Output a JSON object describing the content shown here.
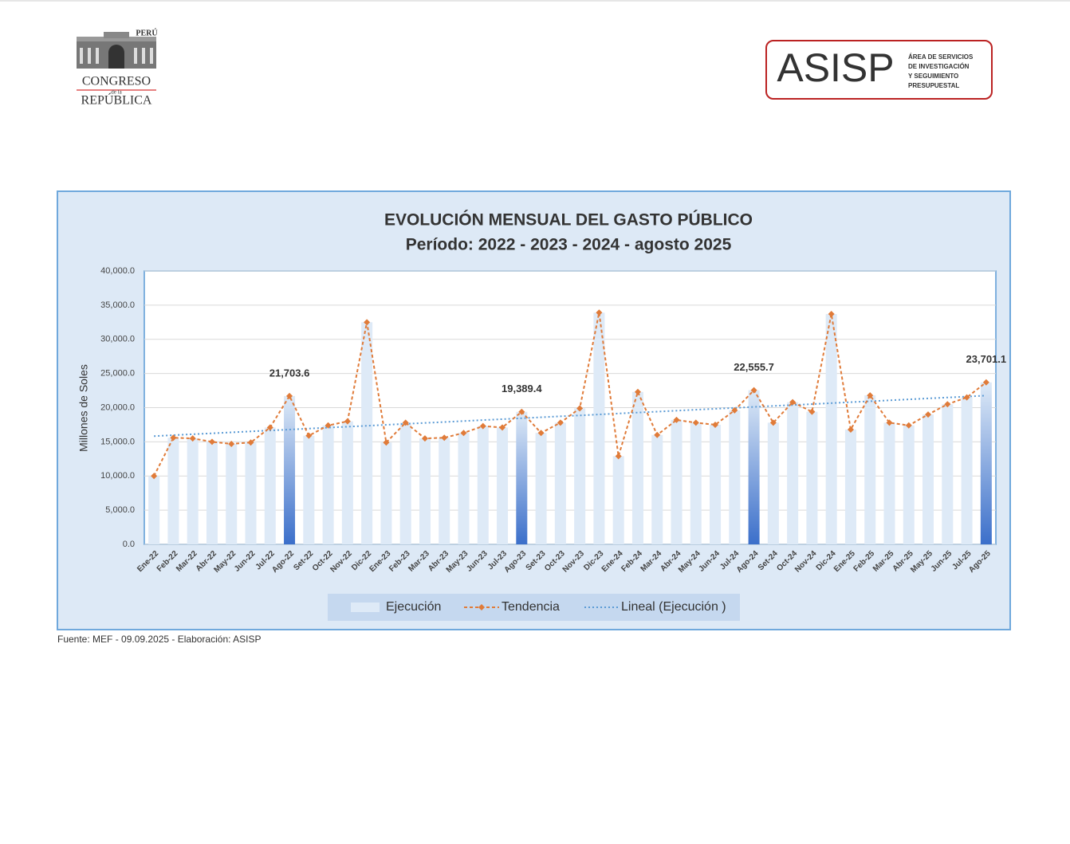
{
  "header": {
    "logo_country": "PERÚ",
    "logo_line1": "CONGRESO",
    "logo_line2": "de la",
    "logo_line3": "REPÚBLICA",
    "badge_title": "ASISP",
    "badge_lines": [
      "ÁREA DE SERVICIOS",
      "DE INVESTIGACIÓN",
      "Y SEGUIMIENTO",
      "PRESUPUESTAL"
    ]
  },
  "chart_data": {
    "type": "bar-line",
    "title": "EVOLUCIÓN MENSUAL DEL GASTO PÚBLICO",
    "subtitle": "Período: 2022 - 2023 - 2024 - agosto 2025",
    "y_label": "Millones de Soles",
    "categories": [
      "Ene-22",
      "Feb-22",
      "Mar-22",
      "Abr-22",
      "May-22",
      "Jun-22",
      "Jul-22",
      "Ago-22",
      "Set-22",
      "Oct-22",
      "Nov-22",
      "Dic-22",
      "Ene-23",
      "Feb-23",
      "Mar-23",
      "Abr-23",
      "May-23",
      "Jun-23",
      "Jul-23",
      "Ago-23",
      "Set-23",
      "Oct-23",
      "Nov-23",
      "Dic-23",
      "Ene-24",
      "Feb-24",
      "Mar-24",
      "Abr-24",
      "May-24",
      "Jun-24",
      "Jul-24",
      "Ago-24",
      "Set-24",
      "Oct-24",
      "Nov-24",
      "Dic-24",
      "Ene-25",
      "Feb-25",
      "Mar-25",
      "Abr-25",
      "May-25",
      "Jun-25",
      "Jul-25",
      "Ago-25"
    ],
    "values": [
      10000,
      15600,
      15500,
      15000,
      14700,
      14900,
      17100,
      21703.6,
      15900,
      17400,
      18000,
      32500,
      14900,
      17800,
      15500,
      15600,
      16300,
      17300,
      17100,
      19389.4,
      16300,
      17800,
      19900,
      33900,
      12900,
      22300,
      16000,
      18200,
      17800,
      17500,
      19600,
      22555.7,
      17800,
      20800,
      19400,
      33700,
      16800,
      21800,
      17800,
      17400,
      19000,
      20500,
      21500,
      23701.1
    ],
    "value_labels": [
      null,
      null,
      null,
      null,
      null,
      null,
      null,
      "21,703.6",
      null,
      null,
      null,
      null,
      null,
      null,
      null,
      null,
      null,
      null,
      null,
      "19,389.4",
      null,
      null,
      null,
      null,
      null,
      null,
      null,
      null,
      null,
      null,
      null,
      "22,555.7",
      null,
      null,
      null,
      null,
      null,
      null,
      null,
      null,
      null,
      null,
      null,
      "23,701.1"
    ],
    "legend": [
      "Ejecución",
      "Tendencia",
      "Lineal (Ejecución )"
    ],
    "bar_color": "#deeaf7",
    "highlight_color": "#3b6fca",
    "line_color": "#e07b39",
    "trend_color": "#5b9bd5",
    "ylim": [
      0,
      40000
    ],
    "yticks": [
      {
        "value": 0,
        "label": "0.0"
      },
      {
        "value": 5000,
        "label": "5,000.0"
      },
      {
        "value": 10000,
        "label": "10,000.0"
      },
      {
        "value": 15000,
        "label": "15,000.0"
      },
      {
        "value": 20000,
        "label": "20,000.0"
      },
      {
        "value": 25000,
        "label": "25,000.0"
      },
      {
        "value": 30000,
        "label": "30,000.0"
      },
      {
        "value": 35000,
        "label": "35,000.0"
      },
      {
        "value": 40000,
        "label": "40,000.0"
      }
    ],
    "grid": true
  },
  "footer": {
    "source": "Fuente: MEF - 09.09.2025 - Elaboración: ASISP"
  }
}
